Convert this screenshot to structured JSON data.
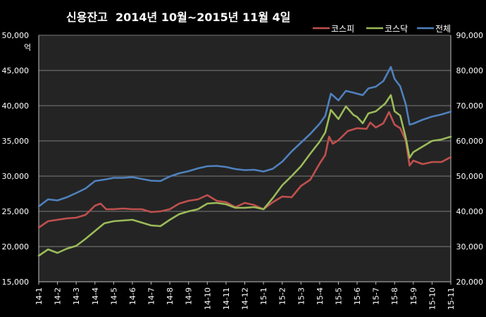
{
  "chart_data": {
    "type": "line",
    "title": "신용잔고  2014년 10월~2015년 11월 4일",
    "y_unit_label": "억",
    "y_left": {
      "lim": [
        15000,
        50000
      ],
      "step": 5000,
      "tick_labels": [
        "15,000",
        "20,000",
        "25,000",
        "30,000",
        "35,000",
        "40,000",
        "45,000",
        "50,000"
      ]
    },
    "y_right": {
      "lim": [
        20000,
        90000
      ],
      "step": 10000,
      "tick_labels": [
        "20,000",
        "30,000",
        "40,000",
        "50,000",
        "60,000",
        "70,000",
        "80,000",
        "90,000"
      ]
    },
    "x_categories": [
      "14-1",
      "14-2",
      "14-3",
      "14-4",
      "14-5",
      "14-6",
      "14-7",
      "14-8",
      "14-9",
      "14-10",
      "14-11",
      "14-12",
      "15-1",
      "15-2",
      "15-3",
      "15-4",
      "15-5",
      "15-6",
      "15-7",
      "15-8",
      "15-9",
      "15-10",
      "15-11"
    ],
    "x_lim": [
      0,
      22
    ],
    "grid": true,
    "legend_position": "top-right",
    "series": [
      {
        "name": "코스피",
        "color": "#c0504d",
        "axis": "left",
        "points": [
          [
            0,
            22700
          ],
          [
            0.5,
            23600
          ],
          [
            1,
            23800
          ],
          [
            1.5,
            24000
          ],
          [
            2,
            24100
          ],
          [
            2.5,
            24500
          ],
          [
            3,
            25800
          ],
          [
            3.3,
            26100
          ],
          [
            3.6,
            25300
          ],
          [
            4,
            25300
          ],
          [
            4.5,
            25400
          ],
          [
            5,
            25300
          ],
          [
            5.5,
            25300
          ],
          [
            6,
            24900
          ],
          [
            6.5,
            25000
          ],
          [
            7,
            25300
          ],
          [
            7.5,
            26100
          ],
          [
            8,
            26500
          ],
          [
            8.5,
            26700
          ],
          [
            9,
            27300
          ],
          [
            9.5,
            26500
          ],
          [
            10,
            26300
          ],
          [
            10.5,
            25600
          ],
          [
            11,
            26200
          ],
          [
            11.5,
            25900
          ],
          [
            12,
            25300
          ],
          [
            12.5,
            26300
          ],
          [
            13,
            27100
          ],
          [
            13.5,
            27000
          ],
          [
            14,
            28600
          ],
          [
            14.5,
            29500
          ],
          [
            15,
            31800
          ],
          [
            15.3,
            33000
          ],
          [
            15.5,
            35600
          ],
          [
            15.7,
            34600
          ],
          [
            16,
            35100
          ],
          [
            16.5,
            36400
          ],
          [
            17,
            36800
          ],
          [
            17.5,
            36700
          ],
          [
            17.7,
            37600
          ],
          [
            18,
            36900
          ],
          [
            18.4,
            37500
          ],
          [
            18.7,
            39100
          ],
          [
            19,
            37300
          ],
          [
            19.3,
            36800
          ],
          [
            19.6,
            35000
          ],
          [
            19.8,
            31500
          ],
          [
            20,
            32200
          ],
          [
            20.5,
            31700
          ],
          [
            21,
            32000
          ],
          [
            21.5,
            32000
          ],
          [
            22,
            32700
          ]
        ]
      },
      {
        "name": "코스닥",
        "color": "#9bbb59",
        "axis": "left",
        "points": [
          [
            0,
            18700
          ],
          [
            0.5,
            19600
          ],
          [
            1,
            19100
          ],
          [
            1.5,
            19700
          ],
          [
            2,
            20100
          ],
          [
            2.5,
            21100
          ],
          [
            3,
            22200
          ],
          [
            3.5,
            23300
          ],
          [
            4,
            23600
          ],
          [
            4.5,
            23700
          ],
          [
            5,
            23800
          ],
          [
            5.5,
            23400
          ],
          [
            6,
            23000
          ],
          [
            6.5,
            22900
          ],
          [
            7,
            23800
          ],
          [
            7.5,
            24600
          ],
          [
            8,
            25000
          ],
          [
            8.5,
            25300
          ],
          [
            9,
            26100
          ],
          [
            9.5,
            26200
          ],
          [
            10,
            26000
          ],
          [
            10.5,
            25500
          ],
          [
            11,
            25500
          ],
          [
            11.5,
            25600
          ],
          [
            12,
            25300
          ],
          [
            12.5,
            26900
          ],
          [
            13,
            28700
          ],
          [
            13.5,
            30000
          ],
          [
            14,
            31400
          ],
          [
            14.5,
            33200
          ],
          [
            15,
            34900
          ],
          [
            15.3,
            36200
          ],
          [
            15.6,
            39400
          ],
          [
            16,
            38100
          ],
          [
            16.4,
            39900
          ],
          [
            16.8,
            38700
          ],
          [
            17,
            38400
          ],
          [
            17.3,
            37500
          ],
          [
            17.6,
            38900
          ],
          [
            18,
            39200
          ],
          [
            18.5,
            40300
          ],
          [
            18.8,
            41500
          ],
          [
            19,
            39200
          ],
          [
            19.3,
            38600
          ],
          [
            19.6,
            35400
          ],
          [
            19.8,
            32600
          ],
          [
            20,
            33400
          ],
          [
            20.5,
            34200
          ],
          [
            21,
            35000
          ],
          [
            21.5,
            35200
          ],
          [
            22,
            35600
          ]
        ]
      },
      {
        "name": "전체",
        "color": "#4f81bd",
        "axis": "right",
        "points": [
          [
            0,
            41400
          ],
          [
            0.5,
            43400
          ],
          [
            1,
            43100
          ],
          [
            1.5,
            44000
          ],
          [
            2,
            45200
          ],
          [
            2.5,
            46500
          ],
          [
            3,
            48600
          ],
          [
            3.5,
            49000
          ],
          [
            4,
            49500
          ],
          [
            4.5,
            49500
          ],
          [
            5,
            49700
          ],
          [
            5.5,
            49200
          ],
          [
            6,
            48700
          ],
          [
            6.5,
            48600
          ],
          [
            7,
            49900
          ],
          [
            7.5,
            50800
          ],
          [
            8,
            51400
          ],
          [
            8.5,
            52200
          ],
          [
            9,
            52800
          ],
          [
            9.5,
            52900
          ],
          [
            10,
            52600
          ],
          [
            10.5,
            52000
          ],
          [
            11,
            51700
          ],
          [
            11.5,
            51800
          ],
          [
            12,
            51300
          ],
          [
            12.5,
            52100
          ],
          [
            13,
            54100
          ],
          [
            13.5,
            57000
          ],
          [
            14,
            59500
          ],
          [
            14.5,
            62000
          ],
          [
            15,
            64900
          ],
          [
            15.3,
            67100
          ],
          [
            15.6,
            73400
          ],
          [
            16,
            71500
          ],
          [
            16.4,
            74200
          ],
          [
            16.8,
            73700
          ],
          [
            17,
            73400
          ],
          [
            17.3,
            73000
          ],
          [
            17.6,
            74900
          ],
          [
            18,
            75400
          ],
          [
            18.4,
            77000
          ],
          [
            18.8,
            81000
          ],
          [
            19,
            77600
          ],
          [
            19.3,
            75500
          ],
          [
            19.6,
            70300
          ],
          [
            19.8,
            64600
          ],
          [
            20,
            64900
          ],
          [
            20.5,
            66000
          ],
          [
            21,
            66900
          ],
          [
            21.5,
            67500
          ],
          [
            22,
            68300
          ]
        ]
      }
    ]
  }
}
